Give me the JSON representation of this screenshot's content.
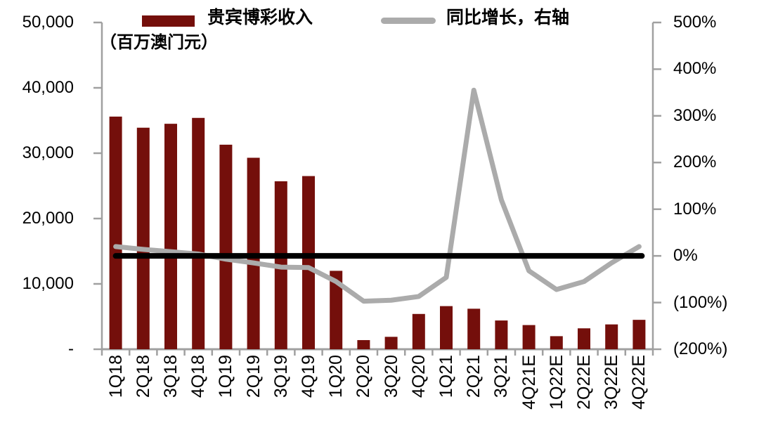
{
  "legend": {
    "bar_label": "贵宾博彩收入",
    "line_label": "同比增长，右轴",
    "unit_label": "（百万澳门元）"
  },
  "colors": {
    "bar": "#740F0B",
    "line": "#ABABAB",
    "zero_line": "#000000",
    "axis": "#A0A0A0",
    "text": "#000000",
    "background": "#FFFFFF"
  },
  "chart_data": {
    "type": "bar",
    "subtype": "combo-bar-line-dual-axis",
    "title": "",
    "grid": false,
    "legend_position": "top",
    "categories": [
      "1Q18",
      "2Q18",
      "3Q18",
      "4Q18",
      "1Q19",
      "2Q19",
      "3Q19",
      "4Q19",
      "1Q20",
      "2Q20",
      "3Q20",
      "4Q20",
      "1Q21",
      "2Q21",
      "3Q21",
      "4Q21E",
      "1Q22E",
      "2Q22E",
      "3Q22E",
      "4Q22E"
    ],
    "series": [
      {
        "name": "贵宾博彩收入",
        "type": "bar",
        "axis": "left",
        "unit": "百万澳门元",
        "color": "#740F0B",
        "values": [
          35600,
          33900,
          34500,
          35400,
          31300,
          29300,
          25700,
          26500,
          12000,
          1400,
          1900,
          5400,
          6600,
          6200,
          4400,
          3700,
          2000,
          3200,
          3800,
          4500
        ]
      },
      {
        "name": "同比增长，右轴",
        "type": "line",
        "axis": "right",
        "unit": "%",
        "color": "#ABABAB",
        "values": [
          20,
          14,
          9,
          4,
          -7,
          -15,
          -24,
          -25,
          -55,
          -97,
          -95,
          -87,
          -46,
          355,
          120,
          -32,
          -72,
          -55,
          -15,
          20
        ]
      }
    ],
    "left_axis": {
      "min": 0,
      "max": 50000,
      "unit": "（百万澳门元）",
      "ticks": [
        0,
        10000,
        20000,
        30000,
        40000,
        50000
      ],
      "tick_labels": [
        "-",
        "10,000",
        "20,000",
        "30,000",
        "40,000",
        "50,000"
      ]
    },
    "right_axis": {
      "min": -200,
      "max": 500,
      "ticks": [
        -200,
        -100,
        0,
        100,
        200,
        300,
        400,
        500
      ],
      "tick_labels": [
        "(200%)",
        "(100%)",
        "0%",
        "100%",
        "200%",
        "300%",
        "400%",
        "500%"
      ]
    },
    "reference_line": {
      "axis": "right",
      "value": 0,
      "color": "#000000"
    }
  }
}
